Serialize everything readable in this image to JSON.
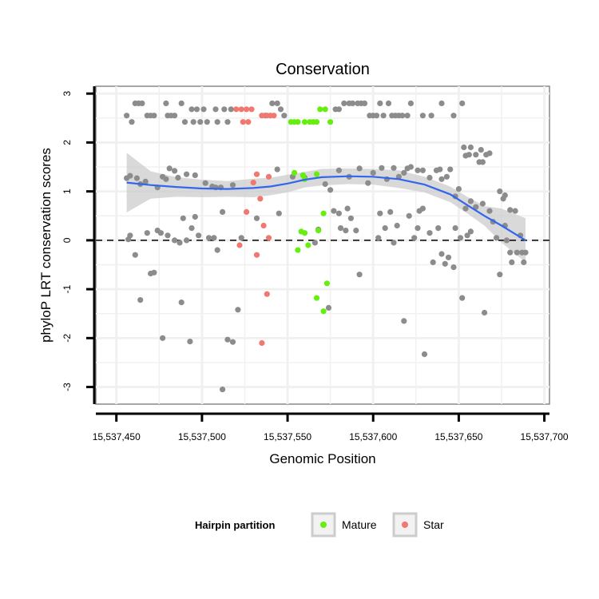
{
  "chart_data": {
    "type": "scatter",
    "title": "Conservation",
    "xlabel": "Genomic Position",
    "ylabel": "phyloP LRT conservation scores",
    "xlim": [
      15537438,
      15537703
    ],
    "ylim": [
      -3.35,
      3.15
    ],
    "x_ticks": [
      15537450,
      15537500,
      15537550,
      15537600,
      15537650,
      15537700
    ],
    "x_tick_labels": [
      "15,537,450",
      "15,537,500",
      "15,537,550",
      "15,537,600",
      "15,537,650",
      "15,537,700"
    ],
    "y_ticks": [
      -3,
      -2,
      -1,
      0,
      1,
      2,
      3
    ],
    "y_tick_labels": [
      "-3",
      "-2",
      "-1",
      "0",
      "1",
      "2",
      "3"
    ],
    "grid": true,
    "reference_line": {
      "y": 0,
      "style": "dashed"
    },
    "legend": {
      "title": "Hairpin partition",
      "position": "bottom",
      "entries": [
        {
          "name": "Mature",
          "color": "#66ee11"
        },
        {
          "name": "Star",
          "color": "#f07870"
        }
      ]
    },
    "colors": {
      "other": "#8c8c8c",
      "Mature": "#66ee11",
      "Star": "#f07870",
      "smooth": "#3366ee",
      "band": "#cccccc"
    },
    "series": [
      {
        "name": "Other",
        "points": [
          [
            15537456,
            2.55
          ],
          [
            15537459,
            2.42
          ],
          [
            15537461,
            2.8
          ],
          [
            15537463,
            2.8
          ],
          [
            15537465,
            2.8
          ],
          [
            15537468,
            2.55
          ],
          [
            15537470,
            2.55
          ],
          [
            15537472,
            2.55
          ],
          [
            15537479,
            2.8
          ],
          [
            15537480,
            2.55
          ],
          [
            15537482,
            2.55
          ],
          [
            15537484,
            2.55
          ],
          [
            15537488,
            2.8
          ],
          [
            15537490,
            2.42
          ],
          [
            15537494,
            2.68
          ],
          [
            15537495,
            2.42
          ],
          [
            15537497,
            2.68
          ],
          [
            15537499,
            2.42
          ],
          [
            15537501,
            2.68
          ],
          [
            15537503,
            2.42
          ],
          [
            15537508,
            2.68
          ],
          [
            15537509,
            2.42
          ],
          [
            15537513,
            2.68
          ],
          [
            15537515,
            2.42
          ],
          [
            15537517,
            2.68
          ],
          [
            15537537,
            2.55
          ],
          [
            15537541,
            2.8
          ],
          [
            15537544,
            2.8
          ],
          [
            15537546,
            2.68
          ],
          [
            15537548,
            2.55
          ],
          [
            15537578,
            2.68
          ],
          [
            15537580,
            2.68
          ],
          [
            15537583,
            2.8
          ],
          [
            15537586,
            2.8
          ],
          [
            15537588,
            2.8
          ],
          [
            15537591,
            2.8
          ],
          [
            15537593,
            2.8
          ],
          [
            15537595,
            2.8
          ],
          [
            15537598,
            2.55
          ],
          [
            15537600,
            2.55
          ],
          [
            15537602,
            2.55
          ],
          [
            15537604,
            2.8
          ],
          [
            15537606,
            2.55
          ],
          [
            15537609,
            2.8
          ],
          [
            15537611,
            2.55
          ],
          [
            15537613,
            2.55
          ],
          [
            15537615,
            2.55
          ],
          [
            15537617,
            2.55
          ],
          [
            15537620,
            2.55
          ],
          [
            15537622,
            2.8
          ],
          [
            15537629,
            2.55
          ],
          [
            15537634,
            2.55
          ],
          [
            15537640,
            2.8
          ],
          [
            15537647,
            2.55
          ],
          [
            15537652,
            2.8
          ],
          [
            15537456,
            1.27
          ],
          [
            15537458,
            1.32
          ],
          [
            15537462,
            1.27
          ],
          [
            15537464,
            1.15
          ],
          [
            15537467,
            1.2
          ],
          [
            15537474,
            1.08
          ],
          [
            15537477,
            1.3
          ],
          [
            15537479,
            1.25
          ],
          [
            15537481,
            1.47
          ],
          [
            15537484,
            1.42
          ],
          [
            15537486,
            1.28
          ],
          [
            15537491,
            1.35
          ],
          [
            15537496,
            1.33
          ],
          [
            15537502,
            1.17
          ],
          [
            15537506,
            1.1
          ],
          [
            15537508,
            1.08
          ],
          [
            15537511,
            1.08
          ],
          [
            15537518,
            1.13
          ],
          [
            15537544,
            1.45
          ],
          [
            15537553,
            1.3
          ],
          [
            15537560,
            1.28
          ],
          [
            15537572,
            1.15
          ],
          [
            15537575,
            1.03
          ],
          [
            15537580,
            1.43
          ],
          [
            15537586,
            1.3
          ],
          [
            15537592,
            1.47
          ],
          [
            15537597,
            1.17
          ],
          [
            15537600,
            1.38
          ],
          [
            15537605,
            1.48
          ],
          [
            15537608,
            1.25
          ],
          [
            15537612,
            1.48
          ],
          [
            15537615,
            1.3
          ],
          [
            15537618,
            1.38
          ],
          [
            15537620,
            1.47
          ],
          [
            15537622,
            1.5
          ],
          [
            15537626,
            1.43
          ],
          [
            15537629,
            1.43
          ],
          [
            15537633,
            1.28
          ],
          [
            15537637,
            1.43
          ],
          [
            15537639,
            1.45
          ],
          [
            15537640,
            1.25
          ],
          [
            15537643,
            1.3
          ],
          [
            15537645,
            1.45
          ],
          [
            15537648,
            0.9
          ],
          [
            15537650,
            1.05
          ],
          [
            15537653,
            1.9
          ],
          [
            15537654,
            1.73
          ],
          [
            15537656,
            1.75
          ],
          [
            15537657,
            1.9
          ],
          [
            15537660,
            1.75
          ],
          [
            15537662,
            1.6
          ],
          [
            15537663,
            1.85
          ],
          [
            15537664,
            1.6
          ],
          [
            15537666,
            1.75
          ],
          [
            15537668,
            1.78
          ],
          [
            15537654,
            0.65
          ],
          [
            15537657,
            0.8
          ],
          [
            15537660,
            0.68
          ],
          [
            15537664,
            0.75
          ],
          [
            15537668,
            0.6
          ],
          [
            15537674,
            1.0
          ],
          [
            15537676,
            0.85
          ],
          [
            15537677,
            0.92
          ],
          [
            15537680,
            0.62
          ],
          [
            15537457,
            0.02
          ],
          [
            15537458,
            0.1
          ],
          [
            15537461,
            -0.3
          ],
          [
            15537464,
            -1.22
          ],
          [
            15537468,
            0.15
          ],
          [
            15537470,
            -0.68
          ],
          [
            15537472,
            -0.66
          ],
          [
            15537474,
            0.2
          ],
          [
            15537476,
            0.15
          ],
          [
            15537477,
            -2.0
          ],
          [
            15537480,
            0.1
          ],
          [
            15537484,
            0.0
          ],
          [
            15537487,
            -0.05
          ],
          [
            15537488,
            -1.27
          ],
          [
            15537489,
            0.45
          ],
          [
            15537491,
            0.0
          ],
          [
            15537493,
            -2.07
          ],
          [
            15537494,
            0.25
          ],
          [
            15537496,
            0.48
          ],
          [
            15537498,
            0.1
          ],
          [
            15537504,
            0.05
          ],
          [
            15537507,
            0.05
          ],
          [
            15537509,
            -0.2
          ],
          [
            15537512,
            0.58
          ],
          [
            15537512,
            -3.05
          ],
          [
            15537515,
            -2.03
          ],
          [
            15537518,
            -2.08
          ],
          [
            15537521,
            -1.42
          ],
          [
            15537523,
            0.05
          ],
          [
            15537532,
            0.45
          ],
          [
            15537545,
            0.55
          ],
          [
            15537566,
            -0.05
          ],
          [
            15537568,
            0.22
          ],
          [
            15537574,
            -1.38
          ],
          [
            15537577,
            0.6
          ],
          [
            15537580,
            0.55
          ],
          [
            15537581,
            0.25
          ],
          [
            15537584,
            0.2
          ],
          [
            15537585,
            0.65
          ],
          [
            15537587,
            0.45
          ],
          [
            15537590,
            0.2
          ],
          [
            15537592,
            -0.7
          ],
          [
            15537603,
            0.05
          ],
          [
            15537604,
            0.55
          ],
          [
            15537607,
            0.25
          ],
          [
            15537610,
            0.58
          ],
          [
            15537612,
            -0.05
          ],
          [
            15537614,
            0.3
          ],
          [
            15537618,
            -1.65
          ],
          [
            15537621,
            0.5
          ],
          [
            15537624,
            0.05
          ],
          [
            15537626,
            0.25
          ],
          [
            15537627,
            0.6
          ],
          [
            15537629,
            0.65
          ],
          [
            15537630,
            -2.33
          ],
          [
            15537633,
            0.15
          ],
          [
            15537635,
            -0.45
          ],
          [
            15537638,
            0.25
          ],
          [
            15537640,
            -0.28
          ],
          [
            15537642,
            -0.48
          ],
          [
            15537644,
            -0.35
          ],
          [
            15537647,
            -0.55
          ],
          [
            15537648,
            0.25
          ],
          [
            15537651,
            0.05
          ],
          [
            15537652,
            -1.18
          ],
          [
            15537655,
            0.1
          ],
          [
            15537657,
            0.18
          ],
          [
            15537665,
            -1.48
          ],
          [
            15537670,
            0.38
          ],
          [
            15537672,
            0.05
          ],
          [
            15537674,
            -0.7
          ],
          [
            15537677,
            0.3
          ],
          [
            15537678,
            0.0
          ],
          [
            15537680,
            -0.25
          ],
          [
            15537681,
            -0.45
          ],
          [
            15537683,
            0.6
          ],
          [
            15537684,
            -0.25
          ],
          [
            15537686,
            0.1
          ],
          [
            15537687,
            -0.25
          ],
          [
            15537688,
            -0.45
          ],
          [
            15537689,
            -0.25
          ]
        ]
      },
      {
        "name": "Mature",
        "points": [
          [
            15537552,
            2.42
          ],
          [
            15537554,
            2.42
          ],
          [
            15537556,
            2.42
          ],
          [
            15537560,
            2.42
          ],
          [
            15537563,
            2.42
          ],
          [
            15537565,
            2.42
          ],
          [
            15537567,
            2.42
          ],
          [
            15537569,
            2.68
          ],
          [
            15537572,
            2.68
          ],
          [
            15537575,
            2.42
          ],
          [
            15537554,
            1.38
          ],
          [
            15537559,
            1.33
          ],
          [
            15537560,
            1.25
          ],
          [
            15537567,
            1.35
          ],
          [
            15537558,
            0.18
          ],
          [
            15537560,
            0.15
          ],
          [
            15537568,
            0.2
          ],
          [
            15537571,
            0.55
          ],
          [
            15537556,
            -0.2
          ],
          [
            15537562,
            -0.1
          ],
          [
            15537573,
            -0.88
          ],
          [
            15537567,
            -1.18
          ],
          [
            15537571,
            -1.45
          ]
        ]
      },
      {
        "name": "Star",
        "points": [
          [
            15537520,
            2.68
          ],
          [
            15537523,
            2.68
          ],
          [
            15537526,
            2.68
          ],
          [
            15537529,
            2.68
          ],
          [
            15537524,
            2.42
          ],
          [
            15537527,
            2.42
          ],
          [
            15537535,
            2.55
          ],
          [
            15537538,
            2.55
          ],
          [
            15537540,
            2.55
          ],
          [
            15537542,
            2.55
          ],
          [
            15537532,
            1.35
          ],
          [
            15537530,
            1.18
          ],
          [
            15537539,
            1.3
          ],
          [
            15537534,
            0.85
          ],
          [
            15537526,
            0.58
          ],
          [
            15537536,
            0.3
          ],
          [
            15537539,
            0.05
          ],
          [
            15537522,
            -0.1
          ],
          [
            15537532,
            -0.3
          ],
          [
            15537538,
            -1.1
          ],
          [
            15537535,
            -2.1
          ]
        ]
      }
    ],
    "smooth": {
      "method": "loess",
      "x": [
        15537456,
        15537470,
        15537485,
        15537500,
        15537515,
        15537530,
        15537540,
        15537550,
        15537560,
        15537570,
        15537585,
        15537600,
        15537615,
        15537630,
        15537645,
        15537655,
        15537665,
        15537675,
        15537689
      ],
      "y": [
        1.18,
        1.13,
        1.09,
        1.06,
        1.05,
        1.07,
        1.1,
        1.16,
        1.24,
        1.29,
        1.31,
        1.3,
        1.25,
        1.14,
        0.94,
        0.72,
        0.5,
        0.3,
        0.0
      ],
      "ci_low": [
        0.57,
        0.85,
        0.89,
        0.88,
        0.89,
        0.88,
        0.92,
        0.98,
        1.08,
        1.12,
        1.15,
        1.14,
        1.07,
        0.98,
        0.78,
        0.55,
        0.3,
        -0.05,
        -0.45
      ],
      "ci_high": [
        1.79,
        1.41,
        1.29,
        1.24,
        1.21,
        1.26,
        1.28,
        1.34,
        1.4,
        1.46,
        1.47,
        1.46,
        1.43,
        1.3,
        1.1,
        0.89,
        0.7,
        0.65,
        0.45
      ]
    }
  }
}
